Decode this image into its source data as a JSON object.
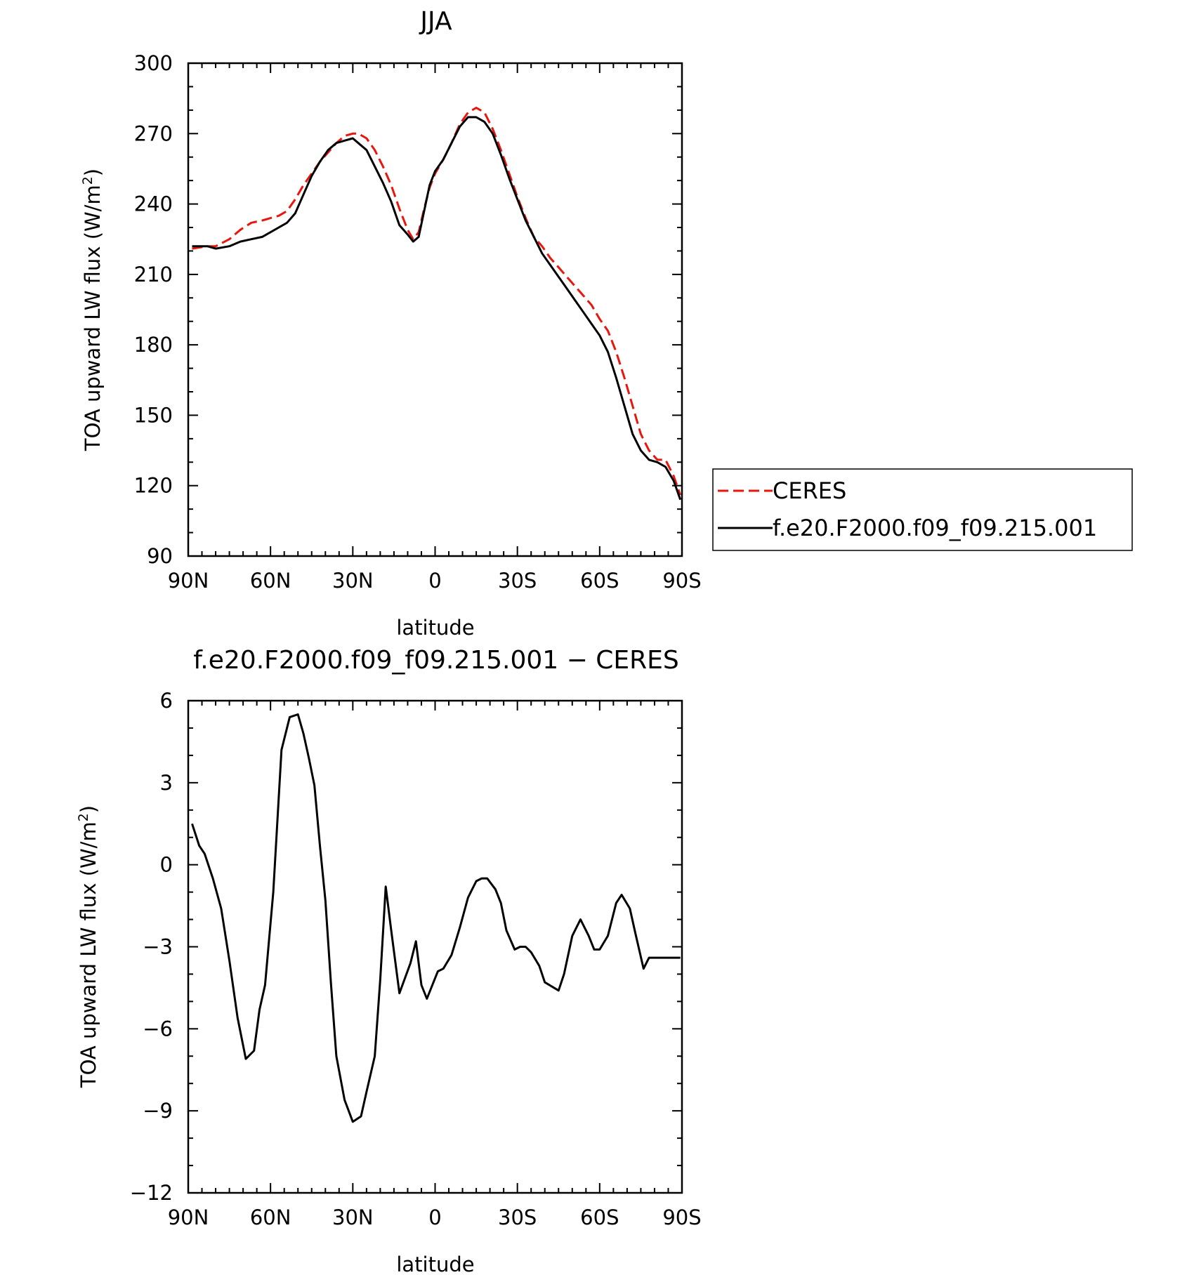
{
  "chart_data": [
    {
      "type": "line",
      "title": "JJA",
      "xlabel": "latitude",
      "ylabel": "TOA upward LW flux (W/m",
      "ylabel_sup": "2",
      "ylabel_close": ")",
      "xlim": [
        90,
        -90
      ],
      "ylim": [
        90,
        300
      ],
      "x_ticks": [
        {
          "value": 90,
          "label": "90N"
        },
        {
          "value": 60,
          "label": "60N"
        },
        {
          "value": 30,
          "label": "30N"
        },
        {
          "value": 0,
          "label": "0"
        },
        {
          "value": -30,
          "label": "30S"
        },
        {
          "value": -60,
          "label": "60S"
        },
        {
          "value": -90,
          "label": "90S"
        }
      ],
      "y_ticks": [
        {
          "value": 90,
          "label": "90"
        },
        {
          "value": 120,
          "label": "120"
        },
        {
          "value": 150,
          "label": "150"
        },
        {
          "value": 180,
          "label": "180"
        },
        {
          "value": 210,
          "label": "210"
        },
        {
          "value": 240,
          "label": "240"
        },
        {
          "value": 270,
          "label": "270"
        },
        {
          "value": 300,
          "label": "300"
        }
      ],
      "x_minor_step": 5,
      "y_minor_step": 10,
      "legend_position": "right",
      "series": [
        {
          "name": "CERES",
          "color": "#e8160c",
          "dash": "dashed",
          "x": [
            88.6,
            83,
            80,
            75,
            71,
            67,
            63,
            60,
            57,
            54,
            51,
            48,
            45,
            42,
            39,
            36,
            33,
            30,
            28,
            25,
            22,
            19,
            16,
            13,
            10,
            8,
            6,
            4,
            2,
            0,
            -3,
            -6,
            -9,
            -12,
            -15,
            -18,
            -21,
            -24,
            -27,
            -30,
            -33,
            -36,
            -39,
            -42,
            -45,
            -48,
            -51,
            -54,
            -57,
            -60,
            -63,
            -66,
            -69,
            -72,
            -75,
            -78,
            -81,
            -84,
            -87,
            -89.4
          ],
          "y": [
            221,
            222,
            222,
            225,
            229,
            232,
            233,
            234,
            235,
            237,
            242,
            248,
            253,
            258,
            262,
            266,
            269,
            270,
            270,
            268,
            263,
            256,
            248,
            238,
            229,
            225,
            228,
            238,
            247,
            253,
            259,
            266,
            274,
            279,
            281,
            279,
            272,
            263,
            253,
            243,
            234,
            226,
            222,
            217,
            213,
            209,
            205,
            201,
            197,
            191,
            186,
            177,
            166,
            154,
            142,
            135,
            131,
            131,
            124,
            116
          ]
        },
        {
          "name": "f.e20.F2000.f09_f09.215.001",
          "color": "#000000",
          "dash": "solid",
          "x": [
            88.6,
            83,
            80,
            75,
            71,
            67,
            63,
            60,
            57,
            54,
            51,
            48,
            45,
            42,
            39,
            36,
            33,
            30,
            28,
            25,
            22,
            19,
            16,
            13,
            10,
            8,
            6,
            4,
            2,
            0,
            -3,
            -6,
            -9,
            -12,
            -15,
            -18,
            -21,
            -24,
            -27,
            -30,
            -33,
            -36,
            -39,
            -42,
            -45,
            -48,
            -51,
            -54,
            -57,
            -60,
            -63,
            -66,
            -69,
            -72,
            -75,
            -78,
            -81,
            -84,
            -87,
            -89.4
          ],
          "y": [
            222,
            222,
            221,
            222,
            224,
            225,
            226,
            228,
            230,
            232,
            236,
            244,
            252,
            258,
            263,
            266,
            267,
            268,
            266,
            263,
            256,
            249,
            241,
            231,
            227,
            224,
            226,
            237,
            248,
            254,
            259,
            266,
            273,
            277,
            277,
            275,
            270,
            261,
            251,
            242,
            233,
            226,
            219,
            214,
            209,
            204,
            199,
            194,
            189,
            184,
            177,
            166,
            154,
            142,
            135,
            131,
            130,
            128,
            122,
            114
          ]
        }
      ]
    },
    {
      "type": "line",
      "title": "f.e20.F2000.f09_f09.215.001 − CERES",
      "xlabel": "latitude",
      "ylabel": "TOA upward LW flux (W/m",
      "ylabel_sup": "2",
      "ylabel_close": ")",
      "xlim": [
        90,
        -90
      ],
      "ylim": [
        -12,
        6
      ],
      "x_ticks": [
        {
          "value": 90,
          "label": "90N"
        },
        {
          "value": 60,
          "label": "60N"
        },
        {
          "value": 30,
          "label": "30N"
        },
        {
          "value": 0,
          "label": "0"
        },
        {
          "value": -30,
          "label": "30S"
        },
        {
          "value": -60,
          "label": "60S"
        },
        {
          "value": -90,
          "label": "90S"
        }
      ],
      "y_ticks": [
        {
          "value": -12,
          "label": "−12"
        },
        {
          "value": -9,
          "label": "−9"
        },
        {
          "value": -6,
          "label": "−6"
        },
        {
          "value": -3,
          "label": "−3"
        },
        {
          "value": 0,
          "label": "0"
        },
        {
          "value": 3,
          "label": "3"
        },
        {
          "value": 6,
          "label": "6"
        }
      ],
      "x_minor_step": 5,
      "y_minor_step": 1,
      "series": [
        {
          "name": "",
          "color": "#000000",
          "dash": "solid",
          "x": [
            88.6,
            86,
            84,
            81,
            78,
            75,
            72,
            69,
            66,
            64,
            62,
            59,
            56,
            53,
            50,
            48,
            46,
            44,
            42,
            40,
            38,
            36,
            33,
            30,
            27,
            25,
            22,
            20,
            18,
            16,
            13,
            9,
            7,
            5,
            3,
            1,
            -1,
            -3,
            -6,
            -9,
            -12,
            -15,
            -17,
            -19,
            -22,
            -24,
            -26,
            -29,
            -31,
            -33,
            -35,
            -38,
            -40,
            -45,
            -47,
            -50,
            -53,
            -56,
            -58,
            -60,
            -63,
            -66,
            -68,
            -71,
            -73,
            -76,
            -78,
            -80,
            -82,
            -84,
            -87,
            -89.4
          ],
          "y": [
            1.5,
            0.7,
            0.4,
            -0.5,
            -1.6,
            -3.5,
            -5.6,
            -7.1,
            -6.8,
            -5.3,
            -4.4,
            -1.0,
            4.2,
            5.4,
            5.5,
            4.8,
            3.9,
            2.9,
            0.7,
            -1.3,
            -4.3,
            -7.0,
            -8.6,
            -9.4,
            -9.2,
            -8.3,
            -7.0,
            -4.2,
            -0.8,
            -2.4,
            -4.7,
            -3.6,
            -2.8,
            -4.4,
            -4.9,
            -4.4,
            -3.9,
            -3.8,
            -3.3,
            -2.3,
            -1.2,
            -0.6,
            -0.5,
            -0.5,
            -0.9,
            -1.4,
            -2.4,
            -3.1,
            -3.0,
            -3.0,
            -3.2,
            -3.7,
            -4.3,
            -4.6,
            -4.0,
            -2.6,
            -2.0,
            -2.6,
            -3.1,
            -3.1,
            -2.6,
            -1.4,
            -1.1,
            -1.6,
            -2.5,
            -3.8,
            -3.4,
            -3.4,
            -3.4,
            -3.4,
            -3.4,
            -3.4
          ]
        }
      ]
    }
  ]
}
